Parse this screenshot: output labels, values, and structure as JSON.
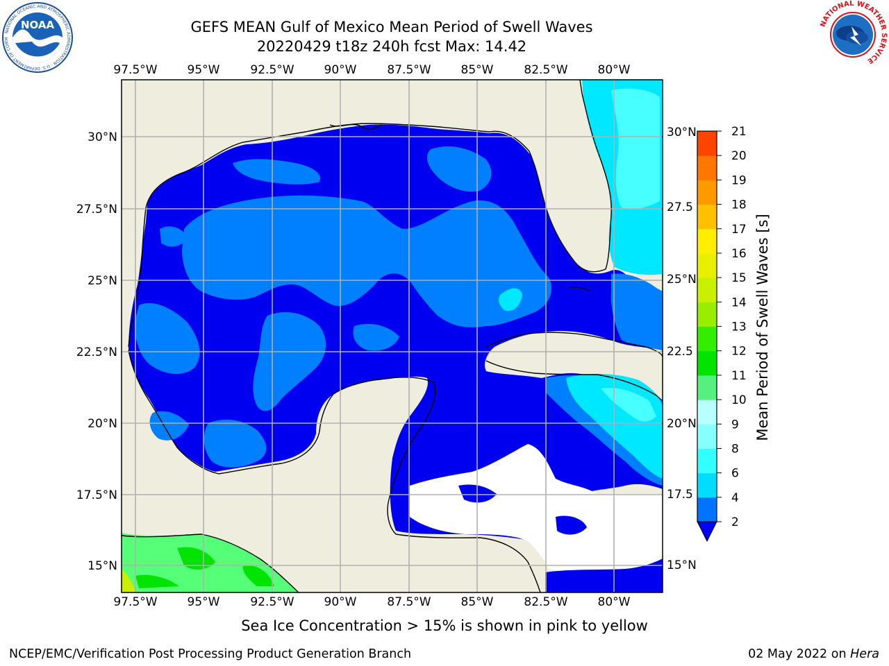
{
  "header": {
    "title_line1": "GEFS MEAN Gulf of Mexico Mean Period of Swell Waves",
    "title_line2": "20220429 t18z 240h fcst   Max: 14.42"
  },
  "logos": {
    "noaa_label": "NOAA",
    "noaa_ring_text": "NATIONAL OCEANIC AND ATMOSPHERIC ADMINISTRATION · U.S. DEPARTMENT OF COMMERCE",
    "nws_ring_text": "NATIONAL WEATHER SERVICE"
  },
  "map": {
    "lon_labels": [
      "97.5°W",
      "95°W",
      "92.5°W",
      "90°W",
      "87.5°W",
      "85°W",
      "82.5°W",
      "80°W"
    ],
    "lat_labels_left": [
      "30°N",
      "27.5°N",
      "25°N",
      "22.5°N",
      "20°N",
      "17.5°N",
      "15°N"
    ],
    "lat_labels_right": [
      "30°N",
      "27.5",
      "25°N",
      "22.5",
      "20°N",
      "17.5",
      "15°N"
    ],
    "colors": {
      "land": "#eeedde",
      "gulf_dark": "#0000f0",
      "gulf_mid": "#0080ff",
      "atlantic_cyan": "#00e8ff",
      "light_cyan": "#47ffff",
      "pacific_green": "#55ff78",
      "bright_green": "#00e400"
    }
  },
  "colorbar": {
    "label": "Mean Period of Swell Waves [s]",
    "ticks": [
      "2",
      "4",
      "6",
      "8",
      "9",
      "10",
      "11",
      "12",
      "13",
      "14",
      "15",
      "16",
      "17",
      "18",
      "19",
      "20",
      "21"
    ],
    "colors": [
      "#0073ff",
      "#00ddff",
      "#32ffff",
      "#88ffff",
      "#b8ffff",
      "#55f080",
      "#00e400",
      "#33ee00",
      "#99ee00",
      "#c8f000",
      "#e8f000",
      "#ffee00",
      "#ffc000",
      "#ff9900",
      "#ff7700",
      "#ff4400",
      "#ff0000"
    ],
    "extend_color": "#0000ff"
  },
  "subtitle": "Sea Ice Concentration > 15% is shown in pink to yellow",
  "footer": {
    "left": "NCEP/EMC/Verification Post Processing Product Generation Branch",
    "right_date": "02 May 2022 on",
    "right_machine": "Hera"
  }
}
